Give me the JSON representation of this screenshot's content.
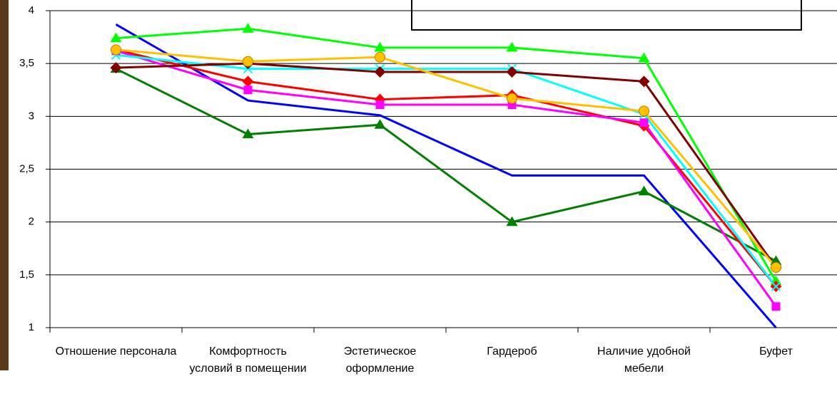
{
  "chart_data": {
    "type": "line",
    "categories": [
      "Отношение персонала",
      "Комфортность условий в помещении",
      "Эстетическое оформление",
      "Гардероб",
      "Наличие удобной мебели",
      "Буфет"
    ],
    "series": [
      {
        "color": "#0000ff",
        "marker": "none",
        "values": [
          3.87,
          3.15,
          3.01,
          2.44,
          2.44,
          1.0
        ]
      },
      {
        "color": "#008000",
        "marker": "triangle",
        "values": [
          3.45,
          2.83,
          2.92,
          2.0,
          2.29,
          1.63
        ]
      },
      {
        "color": "#00ff00",
        "marker": "triangle",
        "values": [
          3.74,
          3.83,
          3.65,
          3.65,
          3.55,
          1.44
        ]
      },
      {
        "color": "#ff0000",
        "marker": "diamond",
        "values": [
          3.63,
          3.33,
          3.16,
          3.2,
          2.91,
          1.39
        ]
      },
      {
        "color": "#ff00ff",
        "marker": "square",
        "values": [
          3.62,
          3.25,
          3.11,
          3.11,
          2.94,
          1.2
        ]
      },
      {
        "color": "#00ffff",
        "marker": "cross",
        "values": [
          3.58,
          3.45,
          3.45,
          3.45,
          3.02,
          1.39
        ]
      },
      {
        "color": "#800000",
        "marker": "diamond",
        "values": [
          3.46,
          3.5,
          3.42,
          3.42,
          3.33,
          1.57
        ]
      },
      {
        "color": "#ffc000",
        "marker": "circle",
        "values": [
          3.63,
          3.52,
          3.56,
          3.17,
          3.05,
          1.57
        ]
      }
    ],
    "ylim": [
      1,
      4
    ],
    "yticks": [
      1,
      {
        "value": 1.5,
        "label": "1,5"
      },
      2,
      {
        "value": 2.5,
        "label": "2,5"
      },
      3,
      {
        "value": 3.5,
        "label": "3,5"
      },
      4
    ],
    "grid": true
  }
}
